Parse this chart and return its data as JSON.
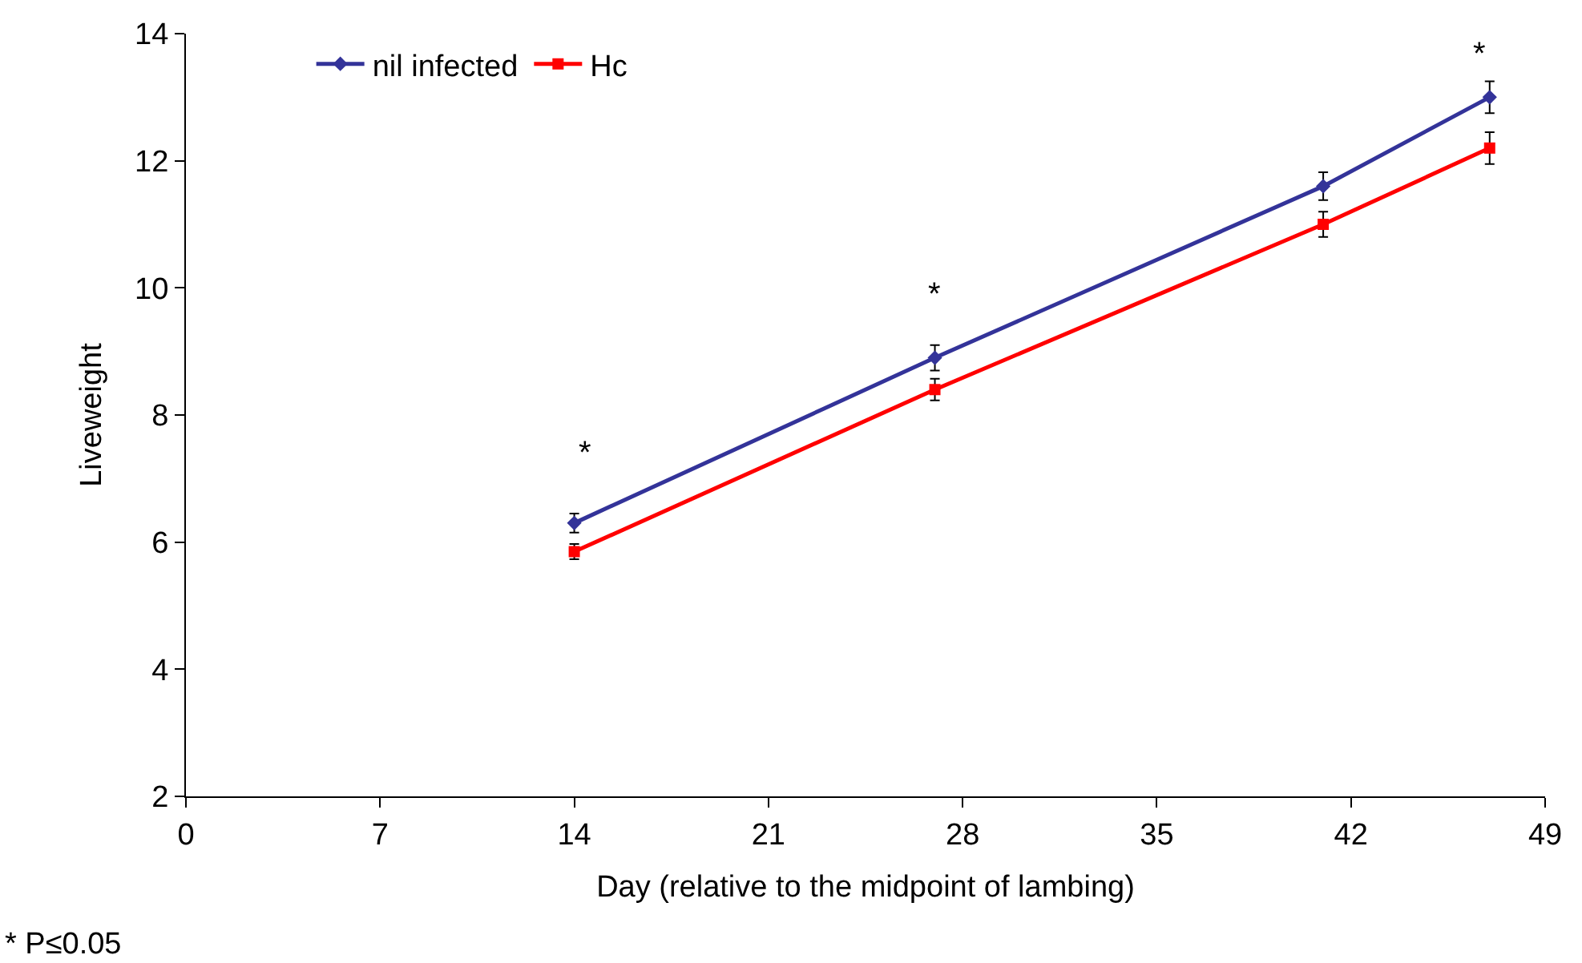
{
  "chart_data": {
    "type": "line",
    "xlabel": "Day (relative to the midpoint of lambing)",
    "ylabel": "Liveweight",
    "x": [
      14,
      27,
      41,
      47
    ],
    "series": [
      {
        "name": "nil infected",
        "color": "#333399",
        "marker": "diamond",
        "values": [
          6.3,
          8.9,
          11.6,
          13.0
        ],
        "errors": [
          0.15,
          0.2,
          0.22,
          0.25
        ]
      },
      {
        "name": "Hc",
        "color": "#ff0000",
        "marker": "square",
        "values": [
          5.85,
          8.4,
          11.0,
          12.2
        ],
        "errors": [
          0.12,
          0.17,
          0.2,
          0.25
        ]
      }
    ],
    "xlim": [
      0,
      49
    ],
    "xticks": [
      0,
      7,
      14,
      21,
      28,
      35,
      42,
      49
    ],
    "ylim": [
      2,
      14
    ],
    "yticks": [
      2,
      4,
      6,
      8,
      10,
      12,
      14
    ],
    "annotations": [
      "*",
      "*",
      "*",
      "* P≤0.05"
    ],
    "legend": "top left",
    "line_style": "solid"
  }
}
